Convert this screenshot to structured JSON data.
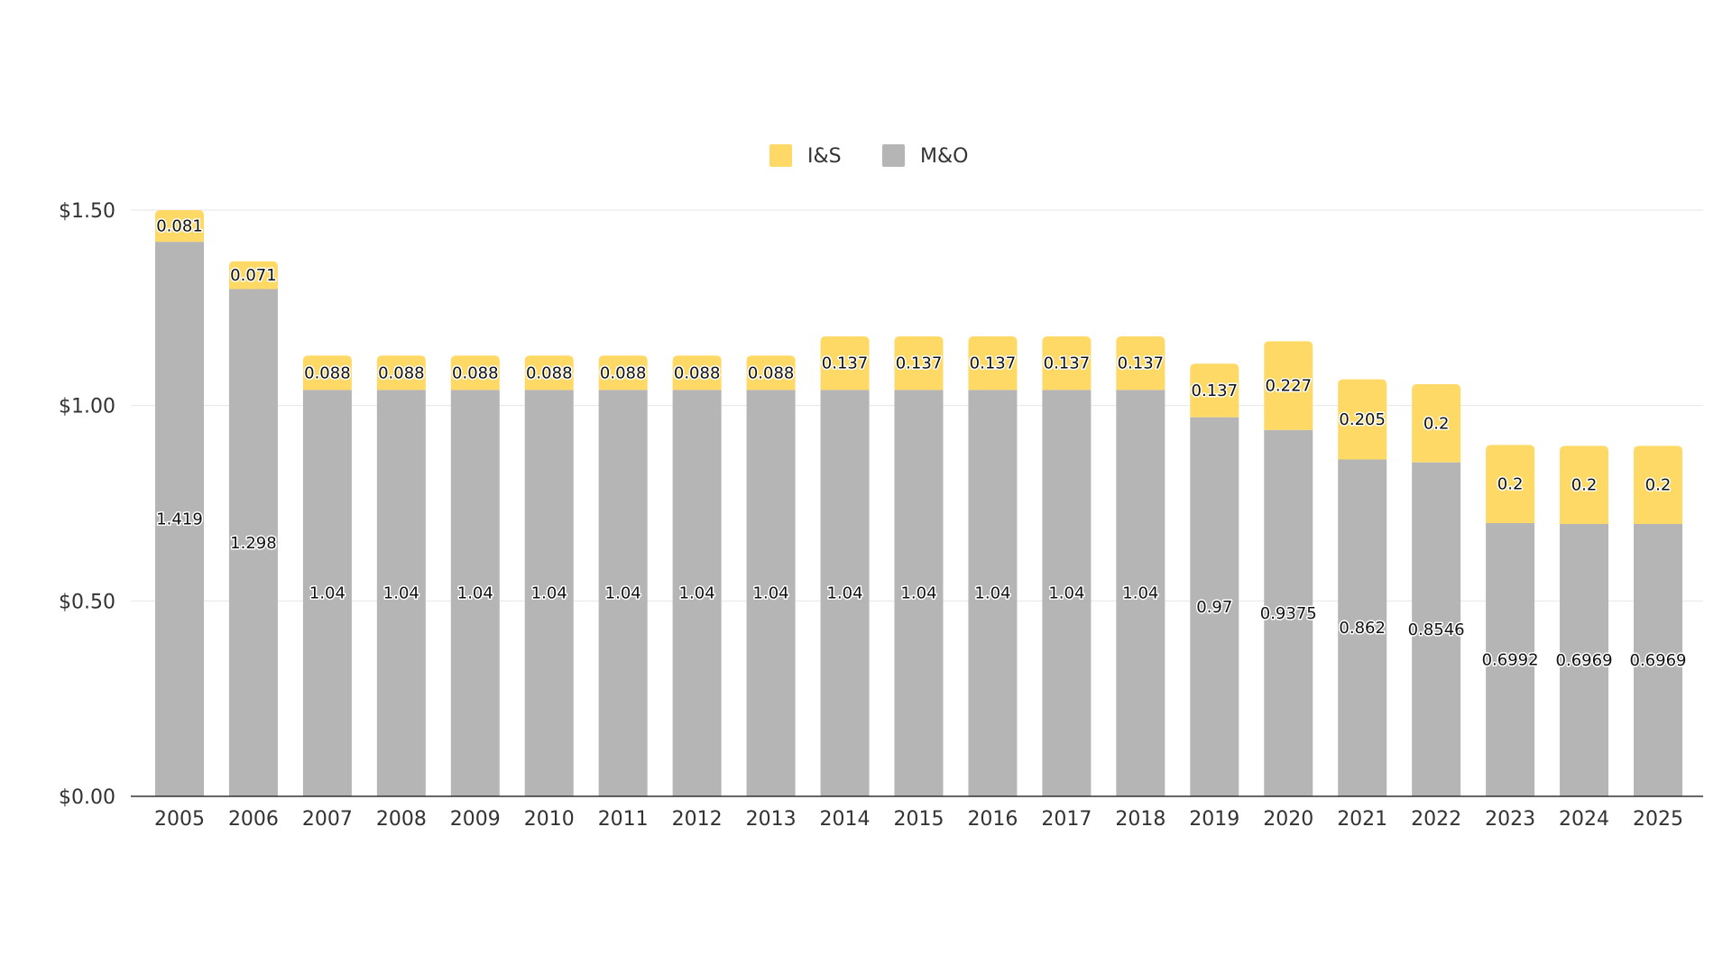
{
  "chart_data": {
    "type": "bar",
    "stacked": true,
    "title": "",
    "xlabel": "",
    "ylabel": "",
    "categories": [
      "2005",
      "2006",
      "2007",
      "2008",
      "2009",
      "2010",
      "2011",
      "2012",
      "2013",
      "2014",
      "2015",
      "2016",
      "2017",
      "2018",
      "2019",
      "2020",
      "2021",
      "2022",
      "2023",
      "2024",
      "2025"
    ],
    "series": [
      {
        "name": "M&O",
        "color": "#b5b5b5",
        "values": [
          1.419,
          1.298,
          1.04,
          1.04,
          1.04,
          1.04,
          1.04,
          1.04,
          1.04,
          1.04,
          1.04,
          1.04,
          1.04,
          1.04,
          0.97,
          0.9375,
          0.862,
          0.8546,
          0.6992,
          0.6969,
          0.6969
        ],
        "labels": [
          "1.419",
          "1.298",
          "1.04",
          "1.04",
          "1.04",
          "1.04",
          "1.04",
          "1.04",
          "1.04",
          "1.04",
          "1.04",
          "1.04",
          "1.04",
          "1.04",
          "0.97",
          "0.9375",
          "0.862",
          "0.8546",
          "0.6992",
          "0.6969",
          "0.6969"
        ]
      },
      {
        "name": "I&S",
        "color": "#ffd966",
        "values": [
          0.081,
          0.071,
          0.088,
          0.088,
          0.088,
          0.088,
          0.088,
          0.088,
          0.088,
          0.137,
          0.137,
          0.137,
          0.137,
          0.137,
          0.137,
          0.227,
          0.205,
          0.2,
          0.2,
          0.2,
          0.2
        ],
        "labels": [
          "0.081",
          "0.071",
          "0.088",
          "0.088",
          "0.088",
          "0.088",
          "0.088",
          "0.088",
          "0.088",
          "0.137",
          "0.137",
          "0.137",
          "0.137",
          "0.137",
          "0.137",
          "0.227",
          "0.205",
          "0.2",
          "0.2",
          "0.2",
          "0.2"
        ]
      }
    ],
    "legend": [
      {
        "name": "I&S",
        "color": "#ffd966"
      },
      {
        "name": "M&O",
        "color": "#b5b5b5"
      }
    ],
    "legend_position": "top-center",
    "ylim": [
      0,
      1.5
    ],
    "yticks": [
      0,
      0.5,
      1.0,
      1.5
    ],
    "ytick_labels": [
      "$0.00",
      "$0.50",
      "$1.00",
      "$1.50"
    ],
    "grid": true
  }
}
